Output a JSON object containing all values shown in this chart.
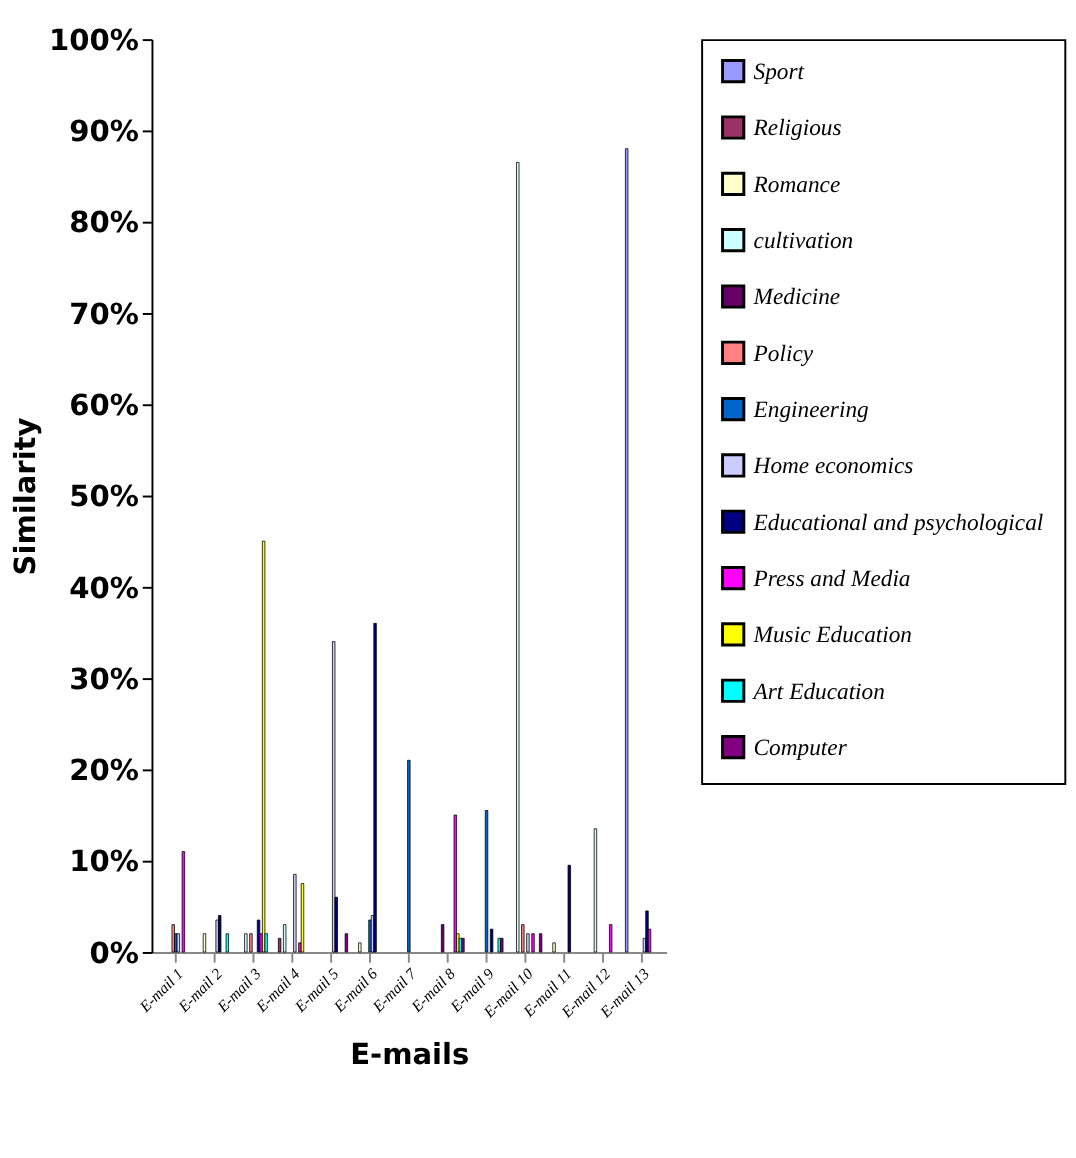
{
  "chart_data": {
    "type": "bar",
    "xlabel": "E-mails",
    "ylabel": "Similarity",
    "categories": [
      "E-mail 1",
      "E-mail 2",
      "E-mail 3",
      "E-mail 4",
      "E-mail 5",
      "E-mail 6",
      "E-mail 7",
      "E-mail 8",
      "E-mail 9",
      "E-mail 10",
      "E-mail 11",
      "E-mail 12",
      "E-mail 13"
    ],
    "ylim": [
      0,
      1
    ],
    "yticks": [
      {
        "value": 0,
        "label": "0%"
      },
      {
        "value": 0.1,
        "label": "10%"
      },
      {
        "value": 0.2,
        "label": "20%"
      },
      {
        "value": 0.3,
        "label": "30%"
      },
      {
        "value": 0.4,
        "label": "40%"
      },
      {
        "value": 0.5,
        "label": "50%"
      },
      {
        "value": 0.6,
        "label": "60%"
      },
      {
        "value": 0.7,
        "label": "70%"
      },
      {
        "value": 0.8,
        "label": "80%"
      },
      {
        "value": 0.9,
        "label": "90%"
      },
      {
        "value": 1,
        "label": "100%"
      }
    ],
    "grid": false,
    "legend": "right",
    "series": [
      {
        "name": "Sport",
        "color": "#9999ff",
        "values": [
          null,
          null,
          null,
          null,
          null,
          null,
          null,
          null,
          null,
          null,
          null,
          null,
          0.88
        ]
      },
      {
        "name": "Religious",
        "color": "#993366",
        "values": [
          null,
          null,
          null,
          0.015,
          null,
          null,
          null,
          null,
          null,
          null,
          null,
          null,
          null
        ]
      },
      {
        "name": "Romance",
        "color": "#ffffcc",
        "values": [
          null,
          0.02,
          null,
          null,
          null,
          0.01,
          null,
          null,
          null,
          null,
          0.01,
          null,
          null
        ]
      },
      {
        "name": "cultivation",
        "color": "#ccffff",
        "values": [
          null,
          null,
          0.02,
          0.03,
          null,
          null,
          null,
          null,
          null,
          0.865,
          null,
          0.135,
          null
        ]
      },
      {
        "name": "Medicine",
        "color": "#660066",
        "values": [
          null,
          null,
          null,
          null,
          null,
          null,
          null,
          0.03,
          null,
          null,
          null,
          null,
          null
        ]
      },
      {
        "name": "Policy",
        "color": "#ff8080",
        "values": [
          0.03,
          null,
          0.02,
          null,
          null,
          null,
          null,
          null,
          null,
          0.03,
          null,
          null,
          null
        ]
      },
      {
        "name": "Engineering",
        "color": "#0066cc",
        "values": [
          0.02,
          null,
          null,
          null,
          null,
          0.035,
          0.21,
          null,
          0.155,
          null,
          null,
          null,
          null
        ]
      },
      {
        "name": "Home economics",
        "color": "#ccccff",
        "values": [
          0.02,
          0.035,
          null,
          0.085,
          0.34,
          0.04,
          null,
          null,
          null,
          0.02,
          null,
          null,
          0.015
        ]
      },
      {
        "name": "Educational and psychological",
        "color": "#000080",
        "values": [
          null,
          0.04,
          0.035,
          null,
          0.06,
          0.36,
          null,
          null,
          0.025,
          null,
          0.095,
          null,
          0.045
        ]
      },
      {
        "name": "Press and Media",
        "color": "#ff00ff",
        "values": [
          0.11,
          null,
          0.02,
          0.01,
          null,
          null,
          null,
          0.15,
          null,
          0.02,
          null,
          0.03,
          0.025
        ]
      },
      {
        "name": "Music Education",
        "color": "#ffff00",
        "values": [
          null,
          null,
          0.45,
          0.075,
          null,
          null,
          null,
          0.02,
          null,
          null,
          null,
          null,
          null
        ]
      },
      {
        "name": "Art Education",
        "color": "#00ffff",
        "values": [
          null,
          0.02,
          0.02,
          null,
          null,
          null,
          null,
          0.015,
          0.015,
          null,
          null,
          null,
          null
        ]
      },
      {
        "name": "Computer",
        "color": "#800080",
        "values": [
          null,
          null,
          null,
          null,
          0.02,
          null,
          null,
          0.015,
          0.015,
          0.02,
          null,
          null,
          null
        ]
      }
    ]
  }
}
